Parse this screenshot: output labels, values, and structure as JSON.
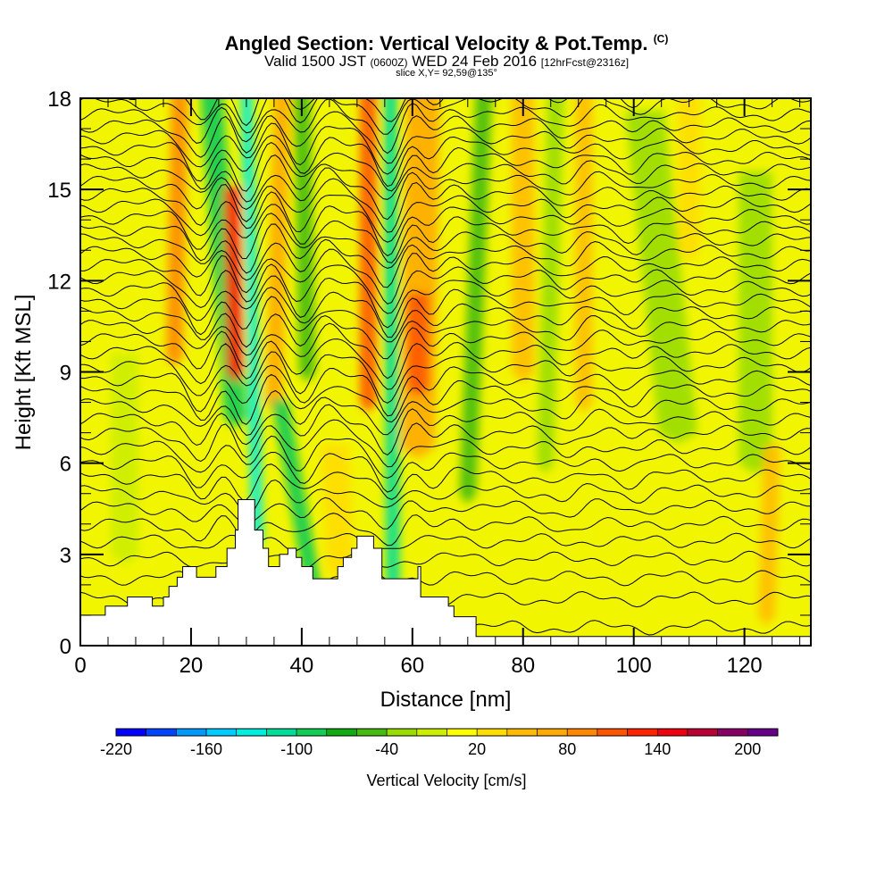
{
  "header": {
    "title": "Angled Section: Vertical Velocity & Pot.Temp.",
    "title_unit": "(C)",
    "valid_prefix": "Valid 1500 JST",
    "valid_utc": "(0600Z)",
    "valid_date": "WED 24 Feb 2016",
    "forecast": "[12hrFcst@2316z]",
    "slice": "slice X,Y= 92,59@135°"
  },
  "chart_data": {
    "type": "heatmap",
    "title": "Angled Section: Vertical Velocity & Pot.Temp.",
    "xlabel": "Distance [nm]",
    "ylabel": "Height [Kft MSL]",
    "xlim": [
      0,
      132
    ],
    "ylim": [
      0,
      18
    ],
    "xticks": [
      "0",
      "20",
      "40",
      "60",
      "80",
      "100",
      "120"
    ],
    "yticks": [
      "0",
      "3",
      "6",
      "9",
      "12",
      "15",
      "18"
    ],
    "colorbar": {
      "label": "Vertical Velocity [cm/s]",
      "levels": [
        -220,
        -200,
        -180,
        -160,
        -140,
        -120,
        -100,
        -80,
        -60,
        -40,
        -20,
        0,
        20,
        40,
        60,
        80,
        100,
        120,
        140,
        160,
        180,
        200,
        220
      ],
      "tick_labels": [
        "-220",
        "-160",
        "-100",
        "-40",
        "20",
        "80",
        "140",
        "200"
      ],
      "colors": [
        "#0000ff",
        "#0044ff",
        "#0099ff",
        "#00ccff",
        "#00eedd",
        "#00dd99",
        "#11cc55",
        "#11aa11",
        "#44bb11",
        "#99dd00",
        "#ccee00",
        "#ffff00",
        "#ffdd00",
        "#ffbb00",
        "#ffaa00",
        "#ff8800",
        "#ff5500",
        "#ff2200",
        "#ee0011",
        "#bb0033",
        "#880066",
        "#660088"
      ]
    },
    "velocity_features": [
      {
        "d_top": 18,
        "d_bot": 17,
        "h_top": 18,
        "h_bot": 9.5,
        "w": 3,
        "value": 80
      },
      {
        "d_top": 23.5,
        "d_bot": 28,
        "h_top": 18,
        "h_bot": 7.5,
        "w": 4,
        "value": -100
      },
      {
        "d_top": 27.5,
        "d_bot": 28,
        "h_top": 14.5,
        "h_bot": 9,
        "w": 3,
        "value": 120
      },
      {
        "d_top": 30,
        "d_bot": 32,
        "h_top": 18,
        "h_bot": 3.5,
        "w": 2.2,
        "value": -130
      },
      {
        "d_top": 36.5,
        "d_bot": 35,
        "h_top": 18,
        "h_bot": 8,
        "w": 3,
        "value": 60
      },
      {
        "d_top": 40,
        "d_bot": 41,
        "h_top": 18,
        "h_bot": 9,
        "w": 3,
        "value": -60
      },
      {
        "d_top": 36,
        "d_bot": 42,
        "h_top": 7.5,
        "h_bot": 2,
        "w": 3,
        "value": -100
      },
      {
        "d_top": 52,
        "d_bot": 52,
        "h_top": 18,
        "h_bot": 8,
        "w": 3,
        "value": 100
      },
      {
        "d_top": 56,
        "d_bot": 56.5,
        "h_top": 18,
        "h_bot": 2,
        "w": 2.5,
        "value": -120
      },
      {
        "d_top": 62,
        "d_bot": 61,
        "h_top": 18,
        "h_bot": 6.5,
        "w": 6,
        "value": 60
      },
      {
        "d_top": 61,
        "d_bot": 61,
        "h_top": 11,
        "h_bot": 8.5,
        "w": 4,
        "value": 100
      },
      {
        "d_top": 73,
        "d_bot": 70,
        "h_top": 18,
        "h_bot": 5,
        "w": 3,
        "value": -60
      },
      {
        "d_top": 80,
        "d_bot": 80,
        "h_top": 18,
        "h_bot": 9,
        "w": 4,
        "value": 40
      },
      {
        "d_top": 86,
        "d_bot": 84,
        "h_top": 18,
        "h_bot": 6,
        "w": 3,
        "value": -40
      },
      {
        "d_top": 91,
        "d_bot": 91,
        "h_top": 18,
        "h_bot": 8,
        "w": 3,
        "value": 40
      },
      {
        "d_top": 102,
        "d_bot": 108,
        "h_top": 17,
        "h_bot": 7,
        "w": 7,
        "value": -30
      },
      {
        "d_top": 110,
        "d_bot": 110,
        "h_top": 18,
        "h_bot": 13,
        "w": 4,
        "value": 30
      },
      {
        "d_top": 122,
        "d_bot": 122,
        "h_top": 15,
        "h_bot": 6,
        "w": 6,
        "value": -40
      },
      {
        "d_top": 8,
        "d_bot": 8,
        "h_top": 9,
        "h_bot": 3,
        "w": 5,
        "value": -20
      },
      {
        "d_top": 46,
        "d_bot": 47,
        "h_top": 6,
        "h_bot": 2.5,
        "w": 5,
        "value": 30
      },
      {
        "d_top": 125,
        "d_bot": 124,
        "h_top": 6,
        "h_bot": 1,
        "w": 3,
        "value": 40
      }
    ],
    "terrain_kft": [
      [
        0,
        1
      ],
      [
        4.5,
        1.3
      ],
      [
        8.5,
        1.6
      ],
      [
        13,
        1.3
      ],
      [
        15,
        1.6
      ],
      [
        16,
        1.95
      ],
      [
        17.5,
        2.25
      ],
      [
        18.5,
        2.6
      ],
      [
        21,
        2.25
      ],
      [
        24.5,
        2.6
      ],
      [
        26.5,
        3.2
      ],
      [
        28,
        3.8
      ],
      [
        28.5,
        4.8
      ],
      [
        31.5,
        3.8
      ],
      [
        33,
        3.2
      ],
      [
        34,
        2.6
      ],
      [
        36,
        3.0
      ],
      [
        37.5,
        3.2
      ],
      [
        39,
        2.9
      ],
      [
        40,
        2.6
      ],
      [
        42,
        2.2
      ],
      [
        44.5,
        2.2
      ],
      [
        46.5,
        2.6
      ],
      [
        47.5,
        2.9
      ],
      [
        49,
        3.2
      ],
      [
        50,
        3.6
      ],
      [
        53,
        3.2
      ],
      [
        54.5,
        2.2
      ],
      [
        57.5,
        2.2
      ],
      [
        61,
        2.6
      ],
      [
        61.5,
        1.6
      ],
      [
        66.5,
        1.3
      ],
      [
        67.5,
        0.95
      ],
      [
        71.5,
        0.3
      ],
      [
        132,
        0.3
      ]
    ],
    "contour_count": 40
  }
}
